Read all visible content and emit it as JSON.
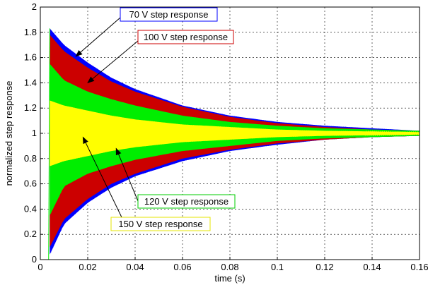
{
  "chart_data": {
    "type": "line",
    "title": "",
    "xlabel": "time (s)",
    "ylabel": "normalized step response",
    "xlim": [
      0,
      0.16
    ],
    "ylim": [
      0,
      2
    ],
    "x_ticks": [
      "0",
      "0.02",
      "0.04",
      "0.06",
      "0.08",
      "0.1",
      "0.12",
      "0.14",
      "0.16"
    ],
    "y_ticks": [
      "0",
      "0.2",
      "0.4",
      "0.6",
      "0.8",
      "1",
      "1.2",
      "1.4",
      "1.6",
      "1.8",
      "2"
    ],
    "grid": true,
    "series": [
      {
        "name": "70 V step response",
        "color": "#0000ff",
        "x": [
          0.004,
          0.01,
          0.02,
          0.03,
          0.04,
          0.06,
          0.08,
          0.1,
          0.12,
          0.14,
          0.16
        ],
        "upper": [
          1.83,
          1.7,
          1.56,
          1.44,
          1.35,
          1.22,
          1.14,
          1.09,
          1.06,
          1.04,
          1.02
        ],
        "lower": [
          0.04,
          0.28,
          0.45,
          0.57,
          0.66,
          0.78,
          0.86,
          0.91,
          0.95,
          0.97,
          0.98
        ]
      },
      {
        "name": "100 V step response",
        "color": "#cc0000",
        "x": [
          0.004,
          0.01,
          0.02,
          0.03,
          0.04,
          0.06,
          0.08,
          0.1,
          0.12,
          0.14,
          0.16
        ],
        "upper": [
          1.78,
          1.65,
          1.52,
          1.41,
          1.33,
          1.21,
          1.13,
          1.08,
          1.05,
          1.03,
          1.02
        ],
        "lower": [
          0.1,
          0.32,
          0.48,
          0.6,
          0.68,
          0.8,
          0.87,
          0.92,
          0.95,
          0.97,
          0.98
        ]
      },
      {
        "name": "120 V step response",
        "color": "#00ee00",
        "x": [
          0.004,
          0.01,
          0.02,
          0.03,
          0.04,
          0.06,
          0.08,
          0.1,
          0.12,
          0.14,
          0.16
        ],
        "upper": [
          1.55,
          1.42,
          1.33,
          1.27,
          1.22,
          1.14,
          1.09,
          1.06,
          1.04,
          1.03,
          1.02
        ],
        "lower": [
          0.35,
          0.58,
          0.68,
          0.74,
          0.79,
          0.86,
          0.9,
          0.94,
          0.96,
          0.97,
          0.98
        ]
      },
      {
        "name": "150 V step response",
        "color": "#ffff00",
        "x": [
          0.004,
          0.01,
          0.02,
          0.03,
          0.04,
          0.06,
          0.08,
          0.1,
          0.12,
          0.14,
          0.16
        ],
        "upper": [
          1.26,
          1.22,
          1.18,
          1.14,
          1.11,
          1.07,
          1.05,
          1.03,
          1.02,
          1.015,
          1.01
        ],
        "lower": [
          0.74,
          0.78,
          0.82,
          0.86,
          0.89,
          0.93,
          0.95,
          0.97,
          0.98,
          0.985,
          0.99
        ]
      }
    ],
    "annotations": [
      {
        "text": "70 V step response",
        "border": "#0000ff",
        "arrow_to": [
          0.015,
          1.61
        ]
      },
      {
        "text": "100 V step response",
        "border": "#cc0000",
        "arrow_to": [
          0.02,
          1.4
        ]
      },
      {
        "text": "120 V step response",
        "border": "#00cc00",
        "arrow_to": [
          0.032,
          0.88
        ]
      },
      {
        "text": "150 V step response",
        "border": "#e6e600",
        "arrow_to": [
          0.018,
          0.97
        ]
      }
    ]
  }
}
